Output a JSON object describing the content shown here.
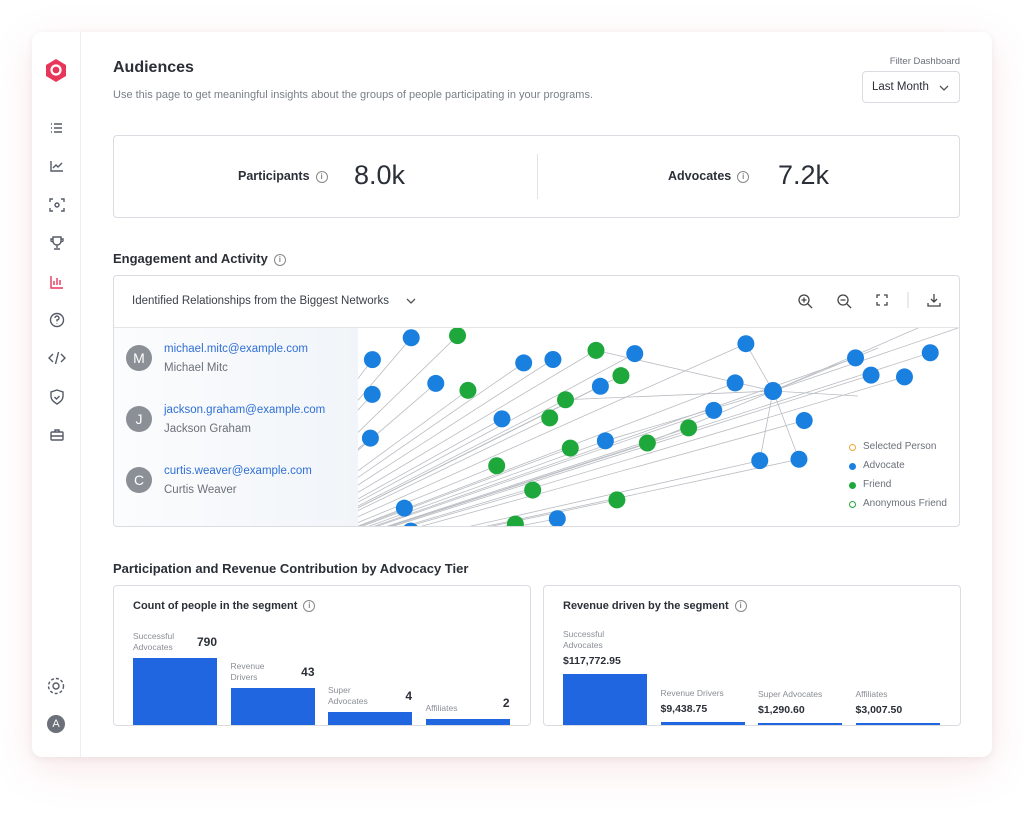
{
  "sidebar": {
    "avatar": "A"
  },
  "header": {
    "title": "Audiences",
    "subtitle": "Use this page to get meaningful insights about the groups of people participating in your programs.",
    "filter_label": "Filter Dashboard",
    "filter_value": "Last Month"
  },
  "stats": [
    {
      "label": "Participants",
      "value": "8.0k"
    },
    {
      "label": "Advocates",
      "value": "7.2k"
    }
  ],
  "engagement": {
    "title": "Engagement and Activity",
    "graph_title": "Identified Relationships from the Biggest Networks",
    "people": [
      {
        "initial": "M",
        "email": "michael.mitc@example.com",
        "name": "Michael Mitc"
      },
      {
        "initial": "J",
        "email": "jackson.graham@example.com",
        "name": "Jackson Graham"
      },
      {
        "initial": "C",
        "email": "curtis.weaver@example.com",
        "name": "Curtis Weaver"
      }
    ],
    "legend": [
      {
        "label": "Selected Person",
        "color": "#f0a830",
        "hollow": true
      },
      {
        "label": "Advocate",
        "color": "#1a80e0",
        "hollow": false
      },
      {
        "label": "Friend",
        "color": "#1ea83c",
        "hollow": false
      },
      {
        "label": "Anonymous Friend",
        "color": "#1ea83c",
        "hollow": true
      }
    ]
  },
  "tiers_title": "Participation and Revenue Contribution by Advocacy Tier",
  "chart_data": [
    {
      "type": "bar",
      "title": "Count of people in the segment",
      "categories": [
        "Successful Advocates",
        "Revenue Drivers",
        "Super Advocates",
        "Affiliates"
      ],
      "values": [
        790,
        43,
        4,
        2
      ],
      "color": "#1f66e0",
      "log_scale": true
    },
    {
      "type": "bar",
      "title": "Revenue driven by the segment",
      "categories": [
        "Successful Advocates",
        "Revenue Drivers",
        "Super Advocates",
        "Affiliates"
      ],
      "values": [
        117772.95,
        9438.75,
        1290.6,
        3007.5
      ],
      "value_labels": [
        "$117,772.95",
        "$9,438.75",
        "$1,290.60",
        "$3,007.50"
      ],
      "color": "#1f66e0",
      "log_scale": false
    }
  ]
}
